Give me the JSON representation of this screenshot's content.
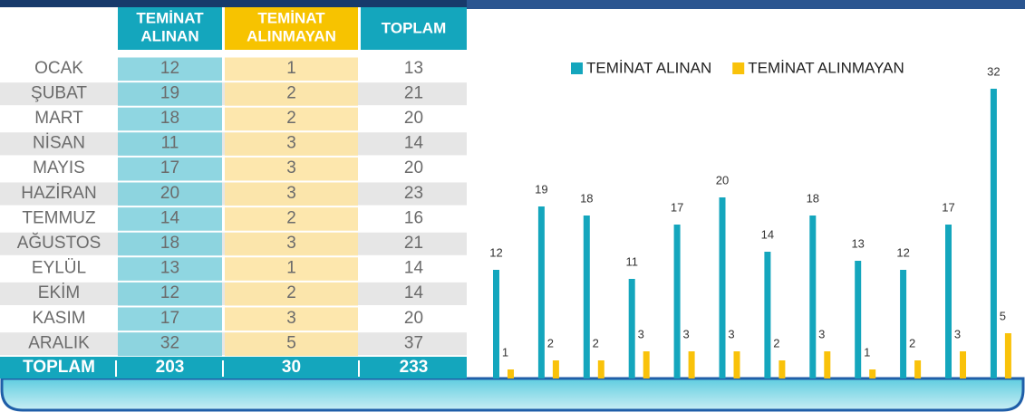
{
  "table": {
    "columns": [
      [
        "TEMİNAT",
        "ALINAN"
      ],
      [
        "TEMİNAT",
        "ALINMAYAN"
      ],
      [
        "TOPLAM"
      ]
    ],
    "rows": [
      [
        "OCAK",
        12,
        1,
        13
      ],
      [
        "ŞUBAT",
        19,
        2,
        21
      ],
      [
        "MART",
        18,
        2,
        20
      ],
      [
        "NİSAN",
        11,
        3,
        14
      ],
      [
        "MAYIS",
        17,
        3,
        20
      ],
      [
        "HAZİRAN",
        20,
        3,
        23
      ],
      [
        "TEMMUZ",
        14,
        2,
        16
      ],
      [
        "AĞUSTOS",
        18,
        3,
        21
      ],
      [
        "EYLÜL",
        13,
        1,
        14
      ],
      [
        "EKİM",
        12,
        2,
        14
      ],
      [
        "KASIM",
        17,
        3,
        20
      ],
      [
        "ARALIK",
        32,
        5,
        37
      ]
    ],
    "total": [
      "TOPLAM",
      203,
      30,
      233
    ]
  },
  "chart_data": {
    "type": "bar",
    "categories": [
      null,
      null,
      null,
      null,
      null,
      null,
      null,
      null,
      null,
      null,
      null,
      null
    ],
    "series": [
      {
        "name": "TEMİNAT ALINAN",
        "color": "#14a6bd",
        "values": [
          12,
          19,
          18,
          11,
          17,
          20,
          14,
          18,
          13,
          12,
          17,
          32
        ]
      },
      {
        "name": "TEMİNAT ALINMAYAN",
        "color": "#f9c20a",
        "values": [
          1,
          2,
          2,
          3,
          3,
          3,
          2,
          3,
          1,
          2,
          3,
          5
        ]
      }
    ],
    "ylim": [
      0,
      33
    ]
  }
}
